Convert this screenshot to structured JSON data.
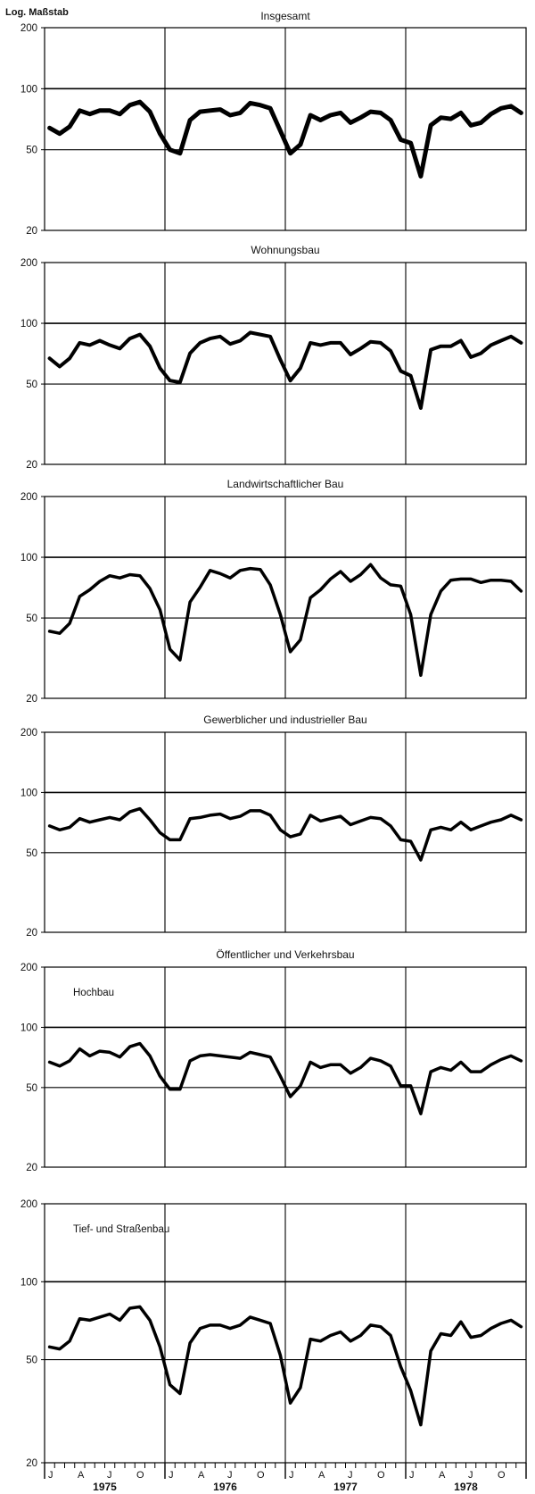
{
  "y_axis_label": "Log. Maßstab",
  "colors": {
    "line": "#000000",
    "grid": "#000000",
    "background": "#ffffff"
  },
  "x_axis": {
    "month_ticks": [
      "J",
      "A",
      "J",
      "O",
      "J",
      "A",
      "J",
      "O",
      "J",
      "A",
      "J",
      "O",
      "J",
      "A",
      "J",
      "O"
    ],
    "years": [
      "1975",
      "1976",
      "1977",
      "1978"
    ]
  },
  "chart_data": [
    {
      "type": "line",
      "title": "Insgesamt",
      "inner_label": "",
      "scale": "log",
      "ylim": [
        20,
        200
      ],
      "yticks": [
        20,
        50,
        100,
        200
      ],
      "grid": true,
      "line_width": 5,
      "x_months": 48,
      "values": [
        64,
        60,
        65,
        78,
        75,
        78,
        78,
        75,
        83,
        86,
        77,
        60,
        50,
        48,
        70,
        77,
        78,
        79,
        74,
        76,
        85,
        83,
        80,
        62,
        48,
        53,
        74,
        70,
        74,
        76,
        68,
        72,
        77,
        76,
        70,
        56,
        54,
        37,
        66,
        72,
        71,
        76,
        66,
        68,
        75,
        80,
        82,
        76
      ]
    },
    {
      "type": "line",
      "title": "Wohnungsbau",
      "inner_label": "",
      "scale": "log",
      "ylim": [
        20,
        200
      ],
      "yticks": [
        20,
        50,
        100,
        200
      ],
      "grid": true,
      "line_width": 4,
      "x_months": 48,
      "values": [
        67,
        61,
        67,
        80,
        78,
        82,
        78,
        75,
        84,
        88,
        77,
        60,
        52,
        51,
        71,
        80,
        84,
        86,
        79,
        82,
        90,
        88,
        86,
        66,
        52,
        60,
        80,
        78,
        80,
        80,
        70,
        75,
        81,
        80,
        73,
        58,
        55,
        38,
        74,
        77,
        77,
        82,
        68,
        71,
        78,
        82,
        86,
        80
      ]
    },
    {
      "type": "line",
      "title": "Landwirtschaftlicher Bau",
      "inner_label": "",
      "scale": "log",
      "ylim": [
        20,
        200
      ],
      "yticks": [
        20,
        50,
        100,
        200
      ],
      "grid": true,
      "line_width": 3.5,
      "x_months": 48,
      "values": [
        43,
        42,
        47,
        64,
        69,
        76,
        81,
        79,
        82,
        81,
        70,
        55,
        35,
        31,
        60,
        71,
        86,
        83,
        79,
        86,
        88,
        87,
        73,
        52,
        34,
        39,
        63,
        69,
        78,
        85,
        76,
        82,
        92,
        79,
        73,
        72,
        52,
        26,
        52,
        68,
        77,
        78,
        78,
        75,
        77,
        77,
        76,
        68
      ]
    },
    {
      "type": "line",
      "title": "Gewerblicher und industrieller Bau",
      "inner_label": "",
      "scale": "log",
      "ylim": [
        20,
        200
      ],
      "yticks": [
        20,
        50,
        100,
        200
      ],
      "grid": true,
      "line_width": 3.5,
      "x_months": 48,
      "values": [
        68,
        65,
        67,
        74,
        71,
        73,
        75,
        73,
        80,
        83,
        73,
        63,
        58,
        58,
        74,
        75,
        77,
        78,
        74,
        76,
        81,
        81,
        77,
        65,
        60,
        62,
        77,
        72,
        74,
        76,
        69,
        72,
        75,
        74,
        68,
        58,
        57,
        46,
        65,
        67,
        65,
        71,
        65,
        68,
        71,
        73,
        77,
        73
      ]
    },
    {
      "type": "line",
      "title": "Öffentlicher und Verkehrsbau",
      "inner_label": "Hochbau",
      "scale": "log",
      "ylim": [
        20,
        200
      ],
      "yticks": [
        20,
        50,
        100,
        200
      ],
      "grid": true,
      "line_width": 3.5,
      "x_months": 48,
      "values": [
        67,
        64,
        68,
        78,
        72,
        76,
        75,
        71,
        80,
        83,
        72,
        57,
        49,
        49,
        68,
        72,
        73,
        72,
        71,
        70,
        75,
        73,
        71,
        57,
        45,
        51,
        67,
        63,
        65,
        65,
        59,
        63,
        70,
        68,
        64,
        51,
        51,
        37,
        60,
        63,
        61,
        67,
        60,
        60,
        65,
        69,
        72,
        68
      ]
    },
    {
      "type": "line",
      "title": "",
      "inner_label": "Tief- und Straßenbau",
      "scale": "log",
      "ylim": [
        20,
        200
      ],
      "yticks": [
        20,
        50,
        100,
        200
      ],
      "grid": true,
      "line_width": 3.5,
      "x_months": 48,
      "values": [
        56,
        55,
        59,
        72,
        71,
        73,
        75,
        71,
        79,
        80,
        71,
        56,
        40,
        37,
        58,
        66,
        68,
        68,
        66,
        68,
        73,
        71,
        69,
        52,
        34,
        39,
        60,
        59,
        62,
        64,
        59,
        62,
        68,
        67,
        62,
        47,
        38,
        28,
        54,
        63,
        62,
        70,
        61,
        62,
        66,
        69,
        71,
        67
      ]
    }
  ]
}
